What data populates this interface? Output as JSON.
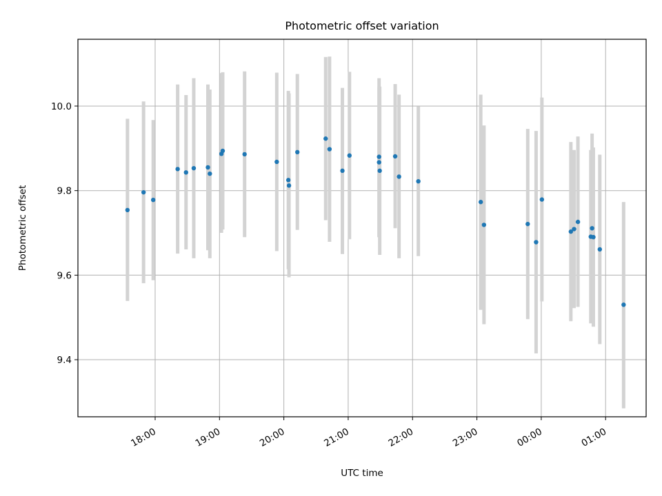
{
  "chart_data": {
    "type": "scatter",
    "title": "Photometric offset variation",
    "xlabel": "UTC time",
    "ylabel": "Photometric offset",
    "x_unit": "hours (continuous clock, values above 24 are after midnight)",
    "xlim": [
      16.8,
      25.63
    ],
    "ylim": [
      9.265,
      10.158
    ],
    "yticks": [
      9.4,
      9.6,
      9.8,
      10.0
    ],
    "ytick_labels": [
      "9.4",
      "9.6",
      "9.8",
      "10.0"
    ],
    "xticks": [
      18,
      19,
      20,
      21,
      22,
      23,
      24,
      25
    ],
    "xtick_labels": [
      "18:00",
      "19:00",
      "20:00",
      "21:00",
      "22:00",
      "23:00",
      "00:00",
      "01:00"
    ],
    "grid": true,
    "colors": {
      "points": "#1f77b4",
      "errorbars": "#d3d3d3",
      "grid": "#b0b0b0"
    },
    "points": [
      {
        "x": 17.57,
        "y": 9.754,
        "ylo": 9.539,
        "yhi": 9.97
      },
      {
        "x": 17.82,
        "y": 9.796,
        "ylo": 9.581,
        "yhi": 10.011
      },
      {
        "x": 17.97,
        "y": 9.778,
        "ylo": 9.588,
        "yhi": 9.967
      },
      {
        "x": 18.35,
        "y": 9.851,
        "ylo": 9.651,
        "yhi": 10.051
      },
      {
        "x": 18.48,
        "y": 9.843,
        "ylo": 9.661,
        "yhi": 10.026
      },
      {
        "x": 18.6,
        "y": 9.853,
        "ylo": 9.64,
        "yhi": 10.066
      },
      {
        "x": 18.82,
        "y": 9.855,
        "ylo": 9.659,
        "yhi": 10.051
      },
      {
        "x": 18.85,
        "y": 9.84,
        "ylo": 9.64,
        "yhi": 10.039
      },
      {
        "x": 19.03,
        "y": 9.887,
        "ylo": 9.7,
        "yhi": 10.078
      },
      {
        "x": 19.05,
        "y": 9.894,
        "ylo": 9.708,
        "yhi": 10.08
      },
      {
        "x": 19.39,
        "y": 9.886,
        "ylo": 9.69,
        "yhi": 10.082
      },
      {
        "x": 19.89,
        "y": 9.868,
        "ylo": 9.657,
        "yhi": 10.079
      },
      {
        "x": 20.07,
        "y": 9.825,
        "ylo": 9.614,
        "yhi": 10.036
      },
      {
        "x": 20.08,
        "y": 9.812,
        "ylo": 9.595,
        "yhi": 10.03
      },
      {
        "x": 20.21,
        "y": 9.891,
        "ylo": 9.707,
        "yhi": 10.076
      },
      {
        "x": 20.65,
        "y": 9.923,
        "ylo": 9.73,
        "yhi": 10.116
      },
      {
        "x": 20.71,
        "y": 9.898,
        "ylo": 9.679,
        "yhi": 10.117
      },
      {
        "x": 20.91,
        "y": 9.847,
        "ylo": 9.65,
        "yhi": 10.043
      },
      {
        "x": 21.02,
        "y": 9.883,
        "ylo": 9.685,
        "yhi": 10.081
      },
      {
        "x": 21.48,
        "y": 9.88,
        "ylo": 9.69,
        "yhi": 10.066
      },
      {
        "x": 21.48,
        "y": 9.867,
        "ylo": 9.69,
        "yhi": 10.045
      },
      {
        "x": 21.49,
        "y": 9.847,
        "ylo": 9.648,
        "yhi": 10.046
      },
      {
        "x": 21.73,
        "y": 9.881,
        "ylo": 9.711,
        "yhi": 10.052
      },
      {
        "x": 21.79,
        "y": 9.833,
        "ylo": 9.64,
        "yhi": 10.027
      },
      {
        "x": 22.09,
        "y": 9.822,
        "ylo": 9.645,
        "yhi": 9.999
      },
      {
        "x": 23.06,
        "y": 9.773,
        "ylo": 9.518,
        "yhi": 10.027
      },
      {
        "x": 23.11,
        "y": 9.719,
        "ylo": 9.484,
        "yhi": 9.954
      },
      {
        "x": 23.79,
        "y": 9.721,
        "ylo": 9.496,
        "yhi": 9.946
      },
      {
        "x": 23.92,
        "y": 9.678,
        "ylo": 9.415,
        "yhi": 9.941
      },
      {
        "x": 24.01,
        "y": 9.779,
        "ylo": 9.538,
        "yhi": 10.02
      },
      {
        "x": 24.46,
        "y": 9.703,
        "ylo": 9.491,
        "yhi": 9.915
      },
      {
        "x": 24.51,
        "y": 9.709,
        "ylo": 9.522,
        "yhi": 9.896
      },
      {
        "x": 24.57,
        "y": 9.726,
        "ylo": 9.525,
        "yhi": 9.928
      },
      {
        "x": 24.77,
        "y": 9.691,
        "ylo": 9.486,
        "yhi": 9.896
      },
      {
        "x": 24.79,
        "y": 9.711,
        "ylo": 9.487,
        "yhi": 9.935
      },
      {
        "x": 24.81,
        "y": 9.69,
        "ylo": 9.478,
        "yhi": 9.902
      },
      {
        "x": 24.91,
        "y": 9.661,
        "ylo": 9.437,
        "yhi": 9.885
      },
      {
        "x": 25.28,
        "y": 9.53,
        "ylo": 9.285,
        "yhi": 9.773
      }
    ]
  }
}
